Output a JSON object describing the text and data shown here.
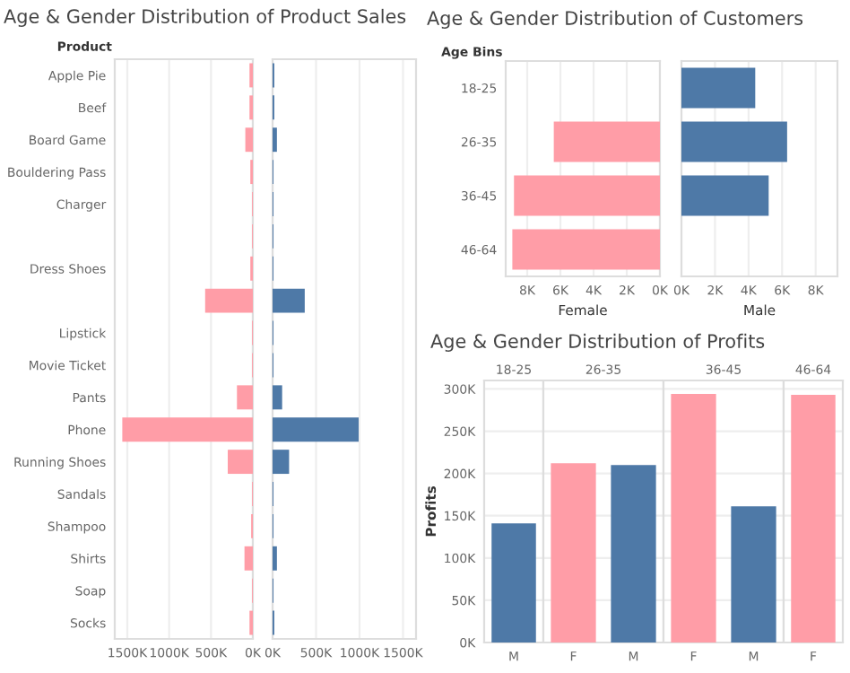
{
  "chart_data": [
    {
      "type": "bar",
      "orientation": "horizontal",
      "title": "Age & Gender Distribution of Product Sales",
      "ylabel": "Product",
      "categories": [
        "Apple Pie",
        "Beef",
        "Board Game",
        "Bouldering Pass",
        "Charger",
        null,
        "Dress Shoes",
        null,
        "Lipstick",
        "Movie Ticket",
        "Pants",
        "Phone",
        "Running Shoes",
        "Sandals",
        "Shampoo",
        "Shirts",
        "Soap",
        "Socks"
      ],
      "series": [
        {
          "color": "#ff9da7",
          "values": [
            40000,
            40000,
            90000,
            30000,
            10000,
            10000,
            30000,
            570000,
            10000,
            10000,
            190000,
            1560000,
            300000,
            10000,
            20000,
            100000,
            10000,
            40000
          ]
        }
      ],
      "xlim": [
        1650000,
        0
      ],
      "xticks": [
        {
          "value": 1500000,
          "label": "1500K"
        },
        {
          "value": 1000000,
          "label": "1000K"
        },
        {
          "value": 500000,
          "label": "500K"
        },
        {
          "value": 0,
          "label": "0K"
        }
      ],
      "grid": "x"
    },
    {
      "type": "bar",
      "orientation": "horizontal",
      "series": [
        {
          "color": "#4e79a7",
          "values": [
            20000,
            20000,
            50000,
            10000,
            10000,
            10000,
            10000,
            370000,
            10000,
            10000,
            110000,
            990000,
            190000,
            10000,
            10000,
            50000,
            10000,
            20000
          ]
        }
      ],
      "xlim": [
        0,
        1650000
      ],
      "xticks": [
        {
          "value": 0,
          "label": "0K"
        },
        {
          "value": 500000,
          "label": "500K"
        },
        {
          "value": 1000000,
          "label": "1000K"
        },
        {
          "value": 1500000,
          "label": "1500K"
        }
      ],
      "grid": "x",
      "tick_labels": "x"
    },
    {
      "type": "bar",
      "orientation": "horizontal",
      "title": "Age & Gender Distribution of Customers",
      "ylabel": "Age Bins",
      "xlabel": "Female",
      "categories": [
        "18-25",
        "26-35",
        "36-45",
        "46-64"
      ],
      "series": [
        {
          "color": "#ff9da7",
          "values": [
            null,
            6400,
            8800,
            8900
          ]
        }
      ],
      "xlim": [
        9300,
        0
      ],
      "xticks": [
        {
          "value": 8000,
          "label": "8K"
        },
        {
          "value": 6000,
          "label": "6K"
        },
        {
          "value": 4000,
          "label": "4K"
        },
        {
          "value": 2000,
          "label": "2K"
        },
        {
          "value": 0,
          "label": "0K"
        }
      ],
      "grid": "x"
    },
    {
      "type": "bar",
      "orientation": "horizontal",
      "xlabel": "Male",
      "series": [
        {
          "color": "#4e79a7",
          "values": [
            4400,
            6300,
            5200,
            null
          ]
        }
      ],
      "xlim": [
        0,
        9300
      ],
      "xticks": [
        {
          "value": 0,
          "label": "0K"
        },
        {
          "value": 2000,
          "label": "2K"
        },
        {
          "value": 4000,
          "label": "4K"
        },
        {
          "value": 6000,
          "label": "6K"
        },
        {
          "value": 8000,
          "label": "8K"
        }
      ],
      "grid": "x",
      "tick_labels": "x"
    },
    {
      "type": "bar",
      "title": "Age & Gender Distribution of Profits",
      "subtitle": "18-25",
      "ylabel": "Profits",
      "categories": [
        "M"
      ],
      "series": [
        {
          "colors": [
            "#4e79a7"
          ],
          "values": [
            141000
          ]
        }
      ],
      "ylim": [
        0,
        310000
      ],
      "yticks": [
        {
          "value": 0,
          "label": "0K"
        },
        {
          "value": 50000,
          "label": "50K"
        },
        {
          "value": 100000,
          "label": "100K"
        },
        {
          "value": 150000,
          "label": "150K"
        },
        {
          "value": 200000,
          "label": "200K"
        },
        {
          "value": 250000,
          "label": "250K"
        },
        {
          "value": 300000,
          "label": "300K"
        }
      ],
      "grid": "y"
    },
    {
      "type": "bar",
      "subtitle": "26-35",
      "categories": [
        "F",
        "M"
      ],
      "series": [
        {
          "colors": [
            "#ff9da7",
            "#4e79a7"
          ],
          "values": [
            212000,
            210000
          ]
        }
      ],
      "ylim": [
        0,
        310000
      ],
      "yticks": [
        0,
        50000,
        100000,
        150000,
        200000,
        250000,
        300000
      ],
      "grid": "y",
      "tick_labels": "x"
    },
    {
      "type": "bar",
      "subtitle": "36-45",
      "categories": [
        "F",
        "M"
      ],
      "series": [
        {
          "colors": [
            "#ff9da7",
            "#4e79a7"
          ],
          "values": [
            294000,
            161000
          ]
        }
      ],
      "ylim": [
        0,
        310000
      ],
      "yticks": [
        0,
        50000,
        100000,
        150000,
        200000,
        250000,
        300000
      ],
      "grid": "y",
      "tick_labels": "x"
    },
    {
      "type": "bar",
      "subtitle": "46-64",
      "categories": [
        "F"
      ],
      "series": [
        {
          "colors": [
            "#ff9da7"
          ],
          "values": [
            293000
          ]
        }
      ],
      "ylim": [
        0,
        310000
      ],
      "yticks": [
        0,
        50000,
        100000,
        150000,
        200000,
        250000,
        300000
      ],
      "grid": "y",
      "tick_labels": "x"
    }
  ]
}
